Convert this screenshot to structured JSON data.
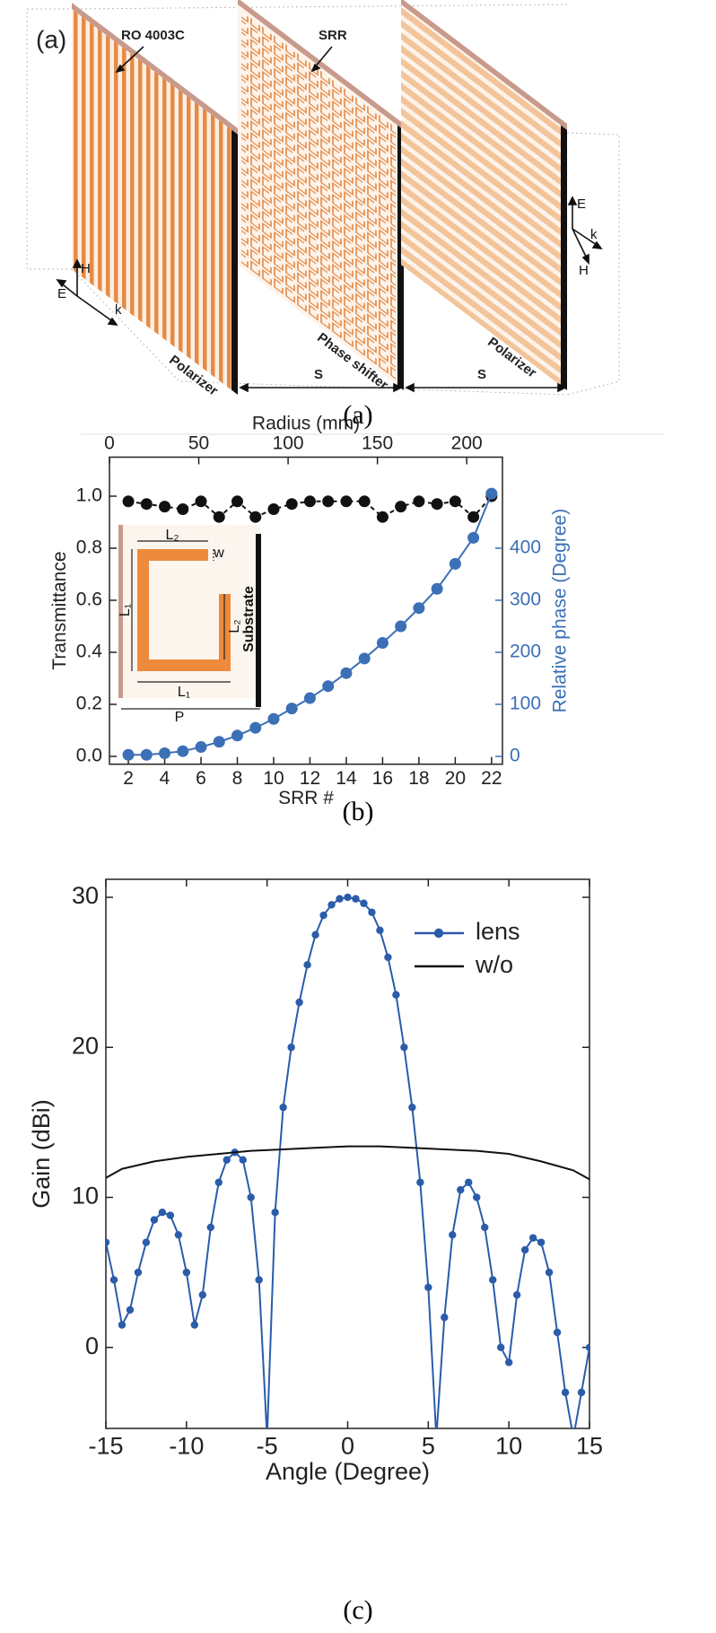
{
  "figure": {
    "captions": [
      "(a)",
      "(b)",
      "(c)"
    ]
  },
  "diagram": {
    "panel_label": "(a)",
    "labels": [
      "RO 4003C",
      "SRR",
      "Polarizer",
      "Phase shifter",
      "Polarizer",
      "S",
      "S",
      "H",
      "E",
      "k",
      "E",
      "k",
      "H"
    ]
  },
  "chart_data": [
    {
      "type": "line",
      "xlabel": "SRR #",
      "x2label": "Radius (mm)",
      "ylabel": "Transmittance",
      "y2label": "Relative phase (Degree)",
      "x": [
        2,
        3,
        4,
        5,
        6,
        7,
        8,
        9,
        10,
        11,
        12,
        13,
        14,
        15,
        16,
        17,
        18,
        19,
        20,
        21,
        22
      ],
      "xlim": [
        0.96,
        22.6
      ],
      "xticks": [
        2,
        4,
        6,
        8,
        10,
        12,
        14,
        16,
        18,
        20,
        22
      ],
      "x2lim": [
        0,
        220
      ],
      "x2ticks": [
        0,
        50,
        100,
        150,
        200
      ],
      "ylim": [
        -0.03,
        1.15
      ],
      "yticks": [
        {
          "value": 0,
          "label": "0.0"
        },
        0.2,
        0.4,
        0.6,
        0.8,
        {
          "value": 1,
          "label": "1.0"
        }
      ],
      "y2lim": [
        -15,
        575
      ],
      "y2ticks": [
        0,
        100,
        200,
        300,
        400
      ],
      "y2color": "#3b6fb6",
      "series": [
        {
          "color": "#111111",
          "linestyle": "dashed",
          "marker": true,
          "values": [
            0.98,
            0.97,
            0.96,
            0.95,
            0.98,
            0.92,
            0.98,
            0.92,
            0.95,
            0.97,
            0.98,
            0.98,
            0.98,
            0.98,
            0.92,
            0.96,
            0.98,
            0.97,
            0.98,
            0.92,
            1.0
          ]
        },
        {
          "color": "#3b6fb6",
          "linestyle": "solid",
          "marker": true,
          "axis": "y2",
          "values": [
            3,
            3,
            6,
            10,
            18,
            28,
            40,
            55,
            72,
            92,
            112,
            135,
            160,
            188,
            218,
            250,
            285,
            322,
            370,
            420,
            505
          ]
        }
      ],
      "inset_labels": [
        "L₂",
        "w",
        "L₁",
        "L₂",
        "Substrate",
        "L₁",
        "P"
      ]
    },
    {
      "type": "line",
      "xlabel": "Angle (Degree)",
      "ylabel": "Gain (dBi)",
      "xlim": [
        -15,
        15
      ],
      "xticks": [
        -15,
        -10,
        -5,
        0,
        5,
        10,
        15
      ],
      "ylim": [
        -5.4,
        31.2
      ],
      "yticks": [
        0,
        10,
        20,
        30
      ],
      "legend": "upper right",
      "series": [
        {
          "name": "lens",
          "color": "#2a5caa",
          "linestyle": "solid",
          "marker": true,
          "x": [
            -15,
            -14.5,
            -14,
            -13.5,
            -13,
            -12.5,
            -12,
            -11.5,
            -11,
            -10.5,
            -10,
            -9.5,
            -9,
            -8.5,
            -8,
            -7.5,
            -7,
            -6.5,
            -6,
            -5.5,
            -5,
            -4.5,
            -4,
            -3.5,
            -3,
            -2.5,
            -2,
            -1.5,
            -1,
            -0.5,
            0,
            0.5,
            1,
            1.5,
            2,
            2.5,
            3,
            3.5,
            4,
            4.5,
            5,
            5.5,
            6,
            6.5,
            7,
            7.5,
            8,
            8.5,
            9,
            9.5,
            10,
            10.5,
            11,
            11.5,
            12,
            12.5,
            13,
            13.5,
            14,
            14.5,
            15
          ],
          "values": [
            7,
            4.5,
            1.5,
            2.5,
            5,
            7,
            8.5,
            9,
            8.8,
            7.5,
            5,
            1.5,
            3.5,
            8,
            11,
            12.5,
            13,
            12.5,
            10,
            4.5,
            -6,
            9,
            16,
            20,
            23,
            25.5,
            27.5,
            28.8,
            29.5,
            29.9,
            30,
            29.9,
            29.6,
            29,
            27.8,
            26,
            23.5,
            20,
            16,
            11,
            4,
            -6,
            2,
            7.5,
            10.5,
            11,
            10,
            8,
            4.5,
            0,
            -1,
            3.5,
            6.5,
            7.3,
            7,
            5,
            1,
            -3,
            -6,
            -3,
            0
          ]
        },
        {
          "name": "w/o",
          "color": "#111111",
          "linestyle": "solid",
          "marker": false,
          "x": [
            -15,
            -14,
            -12,
            -10,
            -8,
            -6,
            -4,
            -2,
            0,
            2,
            4,
            6,
            8,
            10,
            12,
            14,
            15
          ],
          "values": [
            11.3,
            11.9,
            12.4,
            12.7,
            12.9,
            13.1,
            13.2,
            13.3,
            13.4,
            13.4,
            13.3,
            13.2,
            13.1,
            12.9,
            12.4,
            11.8,
            11.2
          ]
        }
      ]
    }
  ]
}
